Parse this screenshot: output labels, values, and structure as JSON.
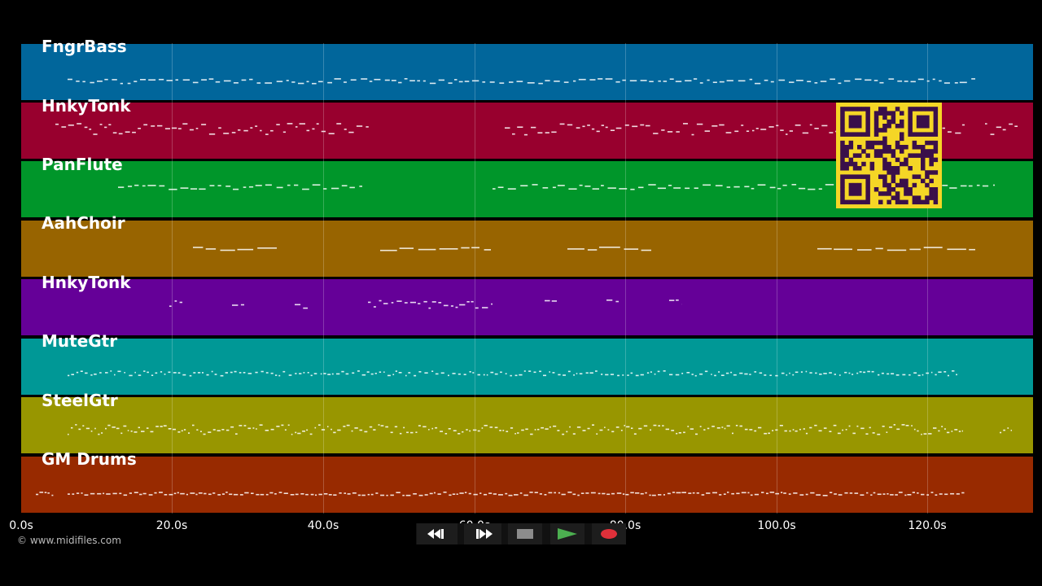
{
  "tracks": [
    {
      "name": "FngrBass",
      "color": "#01669b"
    },
    {
      "name": "HnkyTonk",
      "color": "#98002e"
    },
    {
      "name": "PanFlute",
      "color": "#00962a"
    },
    {
      "name": "AahChoir",
      "color": "#986400"
    },
    {
      "name": "HnkyTonk",
      "color": "#650098"
    },
    {
      "name": "MuteGtr",
      "color": "#009896"
    },
    {
      "name": "SteelGtr",
      "color": "#989600"
    },
    {
      "name": "GM Drums",
      "color": "#982a00"
    }
  ],
  "timeline": {
    "labels": [
      "0.0s",
      "20.0s",
      "40.0s",
      "60.0s",
      "80.0s",
      "100.0s",
      "120.0s"
    ]
  },
  "transport": {
    "icons": [
      "rewind-icon",
      "fast-forward-icon",
      "stop-icon",
      "play-icon",
      "record-icon"
    ],
    "play_color": "#4caf50",
    "record_color": "#e0303a"
  },
  "footer": {
    "copyright": "© www.midifiles.com"
  },
  "overlay": {
    "icon": "qr-code-icon",
    "color": "#f5d626"
  }
}
